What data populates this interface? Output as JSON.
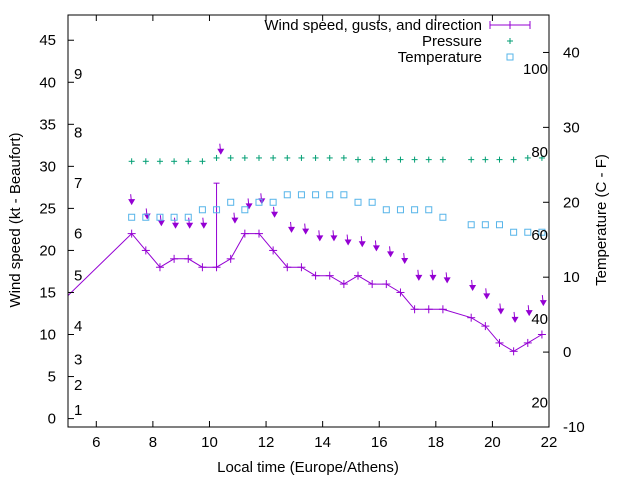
{
  "chart_data": {
    "type": "line",
    "xlabel": "Local time (Europe/Athens)",
    "ylabel": "Wind speed (kt - Beaufort)",
    "y2label": "Temperature (C - F)",
    "xlim": [
      5,
      22
    ],
    "ylim": [
      -1,
      48
    ],
    "y2lim": [
      -10,
      45
    ],
    "x_ticks": [
      "6",
      "8",
      "10",
      "12",
      "14",
      "16",
      "18",
      "20",
      "22"
    ],
    "y_ticks": [
      "0",
      "5",
      "10",
      "15",
      "20",
      "25",
      "30",
      "35",
      "40",
      "45"
    ],
    "y2_ticks": [
      "-10",
      "0",
      "10",
      "20",
      "30",
      "40"
    ],
    "beaufort_labels": [
      {
        "text": "1",
        "y": 1
      },
      {
        "text": "2",
        "y": 4
      },
      {
        "text": "3",
        "y": 7
      },
      {
        "text": "4",
        "y": 11
      },
      {
        "text": "5",
        "y": 17
      },
      {
        "text": "6",
        "y": 22
      },
      {
        "text": "7",
        "y": 28
      },
      {
        "text": "8",
        "y": 34
      },
      {
        "text": "9",
        "y": 41
      }
    ],
    "fahrenheit_labels": [
      {
        "text": "20",
        "c": -6.7
      },
      {
        "text": "40",
        "c": 4.4
      },
      {
        "text": "60",
        "c": 15.6
      },
      {
        "text": "80",
        "c": 26.7
      },
      {
        "text": "100",
        "c": 37.8
      }
    ],
    "legend": {
      "placement": "top-right",
      "entries": [
        "Wind speed, gusts, and direction",
        "Pressure",
        "Temperature"
      ]
    },
    "colors": {
      "wind": "#9400d3",
      "pressure": "#009e73",
      "temperature": "#56b4e9"
    },
    "series": [
      {
        "name": "Wind speed, gusts, and direction",
        "x": [
          4.5,
          7.25,
          7.75,
          8.25,
          8.75,
          9.25,
          9.75,
          10.25,
          10.75,
          11.25,
          11.75,
          12.25,
          12.75,
          13.25,
          13.75,
          14.25,
          14.75,
          15.25,
          15.75,
          16.25,
          16.75,
          17.25,
          17.75,
          18.25,
          19.25,
          19.75,
          20.25,
          20.75,
          21.25,
          21.75
        ],
        "values": [
          13,
          22,
          20,
          18,
          19,
          19,
          18,
          18,
          19,
          22,
          22,
          20,
          18,
          18,
          17,
          17,
          16,
          17,
          16,
          16,
          15,
          13,
          13,
          13,
          12,
          11,
          9,
          8,
          9,
          10
        ],
        "gust": {
          "x": 10.25,
          "value": 28
        },
        "direction_arrows": [
          {
            "x": 7.25,
            "y": 25.5
          },
          {
            "x": 7.8,
            "y": 23.8
          },
          {
            "x": 8.3,
            "y": 23
          },
          {
            "x": 8.8,
            "y": 22.7
          },
          {
            "x": 9.3,
            "y": 22.7
          },
          {
            "x": 9.8,
            "y": 22.7
          },
          {
            "x": 10.4,
            "y": 31.5
          },
          {
            "x": 10.9,
            "y": 23.3
          },
          {
            "x": 11.4,
            "y": 25
          },
          {
            "x": 11.85,
            "y": 25.6
          },
          {
            "x": 12.3,
            "y": 24
          },
          {
            "x": 12.9,
            "y": 22.2
          },
          {
            "x": 13.4,
            "y": 22
          },
          {
            "x": 13.9,
            "y": 21.2
          },
          {
            "x": 14.4,
            "y": 21.2
          },
          {
            "x": 14.9,
            "y": 20.7
          },
          {
            "x": 15.4,
            "y": 20.5
          },
          {
            "x": 15.9,
            "y": 20
          },
          {
            "x": 16.4,
            "y": 19.3
          },
          {
            "x": 16.9,
            "y": 18.5
          },
          {
            "x": 17.4,
            "y": 16.5
          },
          {
            "x": 17.9,
            "y": 16.5
          },
          {
            "x": 18.4,
            "y": 16.2
          },
          {
            "x": 19.3,
            "y": 15.3
          },
          {
            "x": 19.8,
            "y": 14.3
          },
          {
            "x": 20.3,
            "y": 12.5
          },
          {
            "x": 20.8,
            "y": 11.5
          },
          {
            "x": 21.3,
            "y": 12.3
          },
          {
            "x": 21.8,
            "y": 13.5
          }
        ]
      },
      {
        "name": "Pressure",
        "x": [
          7.25,
          7.75,
          8.25,
          8.75,
          9.25,
          9.75,
          10.25,
          10.75,
          11.25,
          11.75,
          12.25,
          12.75,
          13.25,
          13.75,
          14.25,
          14.75,
          15.25,
          15.75,
          16.25,
          16.75,
          17.25,
          17.75,
          18.25,
          19.25,
          19.75,
          20.25,
          20.75,
          21.25,
          21.75
        ],
        "values": [
          30.6,
          30.6,
          30.6,
          30.6,
          30.6,
          30.6,
          31.0,
          31.0,
          31.0,
          31.0,
          31.0,
          31.0,
          31.0,
          31.0,
          31.0,
          31.0,
          30.8,
          30.8,
          30.8,
          30.8,
          30.8,
          30.8,
          30.8,
          30.8,
          30.8,
          30.8,
          30.8,
          31.0,
          31.0
        ]
      },
      {
        "name": "Temperature",
        "x": [
          7.25,
          7.75,
          8.25,
          8.75,
          9.25,
          9.75,
          10.25,
          10.75,
          11.25,
          11.75,
          12.25,
          12.75,
          13.25,
          13.75,
          14.25,
          14.75,
          15.25,
          15.75,
          16.25,
          16.75,
          17.25,
          17.75,
          18.25,
          19.25,
          19.75,
          20.25,
          20.75,
          21.25,
          21.75
        ],
        "values": [
          18,
          18,
          18,
          18,
          18,
          19,
          19,
          20,
          19,
          20,
          20,
          21,
          21,
          21,
          21,
          21,
          20,
          20,
          19,
          19,
          19,
          19,
          18,
          17,
          17,
          17,
          16,
          16,
          16
        ]
      }
    ]
  }
}
